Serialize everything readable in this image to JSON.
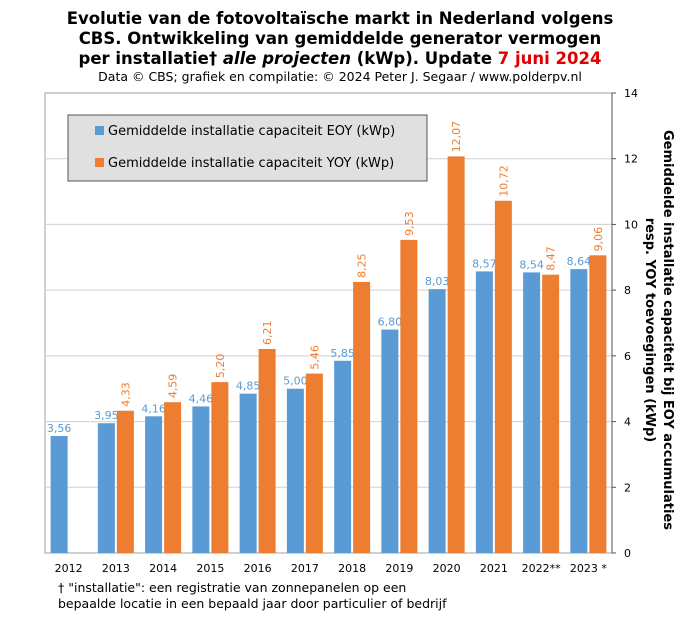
{
  "title": {
    "line1": "Evolutie van de fotovoltaïsche markt in Nederland volgens",
    "line2": "CBS. Ontwikkeling van gemiddelde generator vermogen",
    "line3_pre": "per installatie†",
    "line3_ital": "alle projecten",
    "line3_post": "(kWp). Update",
    "line3_date": "7 juni 2024"
  },
  "credit": "Data © CBS; grafiek en compilatie: © 2024 Peter J. Segaar / www.polderpv.nl",
  "footnote": {
    "line1": "† \"installatie\": een registratie van zonnepanelen op een",
    "line2": "bepaalde locatie in een bepaald jaar door particulier of bedrijf"
  },
  "colors": {
    "eoy": "#5b9bd5",
    "yoy": "#ed7d31",
    "plot_bg": "#ffffff",
    "grid": "#d0d0d0",
    "legend_bg": "#e0e0e0"
  },
  "chart_data": {
    "type": "bar",
    "categories": [
      "2012",
      "2013",
      "2014",
      "2015",
      "2016",
      "2017",
      "2018",
      "2019",
      "2020",
      "2021",
      "2022**",
      "2023 *"
    ],
    "series": [
      {
        "name": "Gemiddelde installatie capaciteit EOY (kWp)",
        "values": [
          3.56,
          3.95,
          4.16,
          4.46,
          4.85,
          5.0,
          5.85,
          6.8,
          8.03,
          8.57,
          8.54,
          8.64
        ],
        "labels": [
          "3,56",
          "3,95",
          "4,16",
          "4,46",
          "4,85",
          "5,00",
          "5,85",
          "6,80",
          "8,03",
          "8,57",
          "8,54",
          "8,64"
        ]
      },
      {
        "name": "Gemiddelde installatie capaciteit YOY (kWp)",
        "values": [
          null,
          4.33,
          4.59,
          5.2,
          6.21,
          5.46,
          8.25,
          9.53,
          12.07,
          10.72,
          8.47,
          9.06
        ],
        "labels": [
          null,
          "4,33",
          "4,59",
          "5,20",
          "6,21",
          "5,46",
          "8,25",
          "9,53",
          "12,07",
          "10,72",
          "8,47",
          "9,06"
        ]
      }
    ],
    "ylabel": "Gemiddelde installatie capaciteit bij EOY accumulaties resp. YOY toevoegingen (kWp)",
    "ylim": [
      0,
      14
    ],
    "yticks": [
      "0",
      "2",
      "4",
      "6",
      "8",
      "10",
      "12",
      "14"
    ],
    "grid": true,
    "legend_position": "top-left",
    "y_axis_side": "right"
  }
}
